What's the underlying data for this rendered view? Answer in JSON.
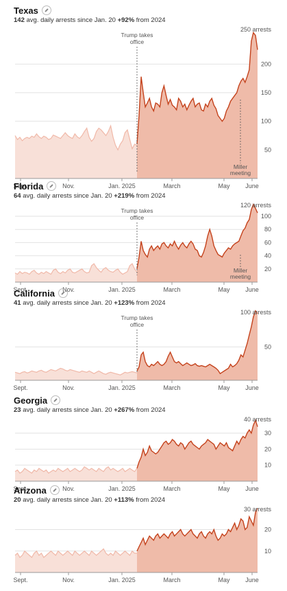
{
  "colors": {
    "pre_fill": "#f8e0d8",
    "pre_line": "#f0b8a8",
    "post_fill": "#efbba9",
    "post_line": "#c4421c",
    "grid": "#e2e2e2",
    "axis": "#999999"
  },
  "annotations": {
    "trump": [
      "Trump takes",
      "office"
    ],
    "miller": [
      "Miller",
      "meeting"
    ]
  },
  "chart_data": [
    {
      "type": "area",
      "title": "Texas",
      "avg_value": "142",
      "avg_label": " avg. daily arrests since Jan. 20",
      "pct_label": "+92%",
      "pct_suffix": " from 2024",
      "x_ticks": [
        "Sept.",
        "Nov.",
        "Jan. 2025",
        "March",
        "May",
        "June"
      ],
      "ylim": [
        0,
        270
      ],
      "y_ticks": [
        50,
        100,
        150,
        200
      ],
      "top_label": "250 arrests",
      "trump_annotation": true,
      "miller_annotation": true,
      "pre_values": [
        75,
        68,
        72,
        66,
        70,
        72,
        70,
        74,
        72,
        78,
        73,
        70,
        74,
        72,
        68,
        70,
        76,
        74,
        72,
        70,
        75,
        80,
        75,
        72,
        70,
        78,
        73,
        70,
        75,
        82,
        88,
        72,
        65,
        70,
        82,
        88,
        85,
        80,
        75,
        82,
        92,
        72,
        58,
        50,
        60,
        66,
        80,
        85,
        68,
        52,
        60,
        58
      ],
      "post_values": [
        60,
        110,
        178,
        150,
        125,
        132,
        140,
        125,
        118,
        132,
        130,
        125,
        150,
        162,
        145,
        130,
        138,
        128,
        125,
        120,
        140,
        135,
        125,
        130,
        120,
        128,
        135,
        140,
        125,
        130,
        132,
        120,
        118,
        130,
        125,
        135,
        140,
        128,
        122,
        110,
        105,
        100,
        105,
        118,
        125,
        135,
        140,
        145,
        150,
        162,
        170,
        175,
        168,
        178,
        190,
        240,
        255,
        250,
        225
      ]
    },
    {
      "type": "area",
      "title": "Florida",
      "avg_value": "64",
      "avg_label": " avg. daily arrests since Jan. 20",
      "pct_label": "+219%",
      "pct_suffix": " from 2024",
      "x_ticks": [
        "Sept.",
        "Nov.",
        "Jan. 2025",
        "March",
        "May",
        "June"
      ],
      "ylim": [
        0,
        125
      ],
      "y_ticks": [
        20,
        40,
        60,
        80,
        100
      ],
      "top_label": "120 arrests",
      "trump_annotation": true,
      "miller_annotation": true,
      "pre_values": [
        14,
        12,
        16,
        13,
        15,
        14,
        12,
        16,
        18,
        14,
        12,
        15,
        13,
        16,
        14,
        12,
        18,
        20,
        15,
        13,
        16,
        14,
        18,
        20,
        15,
        14,
        16,
        18,
        20,
        16,
        14,
        15,
        25,
        28,
        22,
        18,
        15,
        20,
        22,
        18,
        16,
        15,
        18,
        20,
        15,
        12,
        14,
        16,
        25,
        28,
        20,
        15
      ],
      "post_values": [
        20,
        38,
        62,
        48,
        42,
        38,
        50,
        55,
        48,
        52,
        55,
        50,
        58,
        60,
        55,
        52,
        58,
        55,
        62,
        55,
        50,
        56,
        60,
        55,
        52,
        58,
        62,
        58,
        50,
        48,
        40,
        38,
        45,
        55,
        70,
        80,
        70,
        55,
        48,
        42,
        40,
        38,
        44,
        48,
        52,
        50,
        55,
        58,
        60,
        62,
        70,
        78,
        82,
        90,
        95,
        110,
        118,
        112,
        105
      ]
    },
    {
      "type": "area",
      "title": "California",
      "avg_value": "41",
      "avg_label": " avg. daily arrests since Jan. 20",
      "pct_label": "+123%",
      "pct_suffix": " from 2024",
      "x_ticks": [
        "Sept.",
        "Nov.",
        "Jan. 2025",
        "March",
        "May",
        "June"
      ],
      "ylim": [
        0,
        110
      ],
      "y_ticks": [
        50
      ],
      "top_label": "100 arrests",
      "trump_annotation": true,
      "miller_annotation": false,
      "pre_values": [
        12,
        11,
        10,
        12,
        13,
        11,
        12,
        14,
        13,
        12,
        14,
        15,
        13,
        12,
        14,
        16,
        15,
        14,
        16,
        18,
        17,
        15,
        14,
        16,
        15,
        14,
        13,
        12,
        14,
        13,
        12,
        14,
        12,
        10,
        12,
        14,
        12,
        10,
        9,
        11,
        12,
        11,
        10,
        9,
        8,
        10,
        12,
        11,
        12,
        13,
        12,
        11
      ],
      "post_values": [
        14,
        20,
        38,
        42,
        28,
        22,
        20,
        24,
        22,
        25,
        28,
        24,
        22,
        24,
        28,
        36,
        42,
        35,
        28,
        26,
        28,
        25,
        22,
        24,
        26,
        24,
        22,
        23,
        25,
        22,
        21,
        22,
        21,
        20,
        22,
        24,
        22,
        20,
        18,
        15,
        10,
        12,
        14,
        16,
        18,
        24,
        20,
        22,
        25,
        30,
        38,
        35,
        45,
        55,
        68,
        80,
        95,
        104,
        100
      ]
    },
    {
      "type": "area",
      "title": "Georgia",
      "avg_value": "23",
      "avg_label": " avg. daily arrests since Jan. 20",
      "pct_label": "+267%",
      "pct_suffix": " from 2024",
      "x_ticks": [
        "Sept.",
        "Nov.",
        "Jan. 2025",
        "March",
        "May",
        "June"
      ],
      "ylim": [
        0,
        42
      ],
      "y_ticks": [
        10,
        20,
        30
      ],
      "top_label": "40 arrests",
      "trump_annotation": false,
      "miller_annotation": false,
      "pre_values": [
        6,
        7,
        5,
        6,
        8,
        7,
        6,
        5,
        7,
        6,
        8,
        7,
        6,
        7,
        5,
        6,
        7,
        6,
        8,
        7,
        6,
        7,
        8,
        6,
        7,
        8,
        7,
        6,
        7,
        9,
        8,
        7,
        8,
        7,
        6,
        8,
        7,
        6,
        8,
        9,
        7,
        8,
        7,
        6,
        7,
        8,
        6,
        7,
        8,
        7,
        6,
        8
      ],
      "post_values": [
        8,
        12,
        15,
        20,
        16,
        18,
        22,
        19,
        18,
        17,
        18,
        20,
        22,
        24,
        25,
        23,
        24,
        26,
        25,
        23,
        22,
        24,
        23,
        20,
        22,
        24,
        25,
        23,
        22,
        21,
        20,
        22,
        23,
        24,
        26,
        25,
        24,
        23,
        20,
        22,
        24,
        23,
        22,
        24,
        21,
        20,
        19,
        22,
        25,
        23,
        26,
        28,
        27,
        30,
        32,
        30,
        35,
        38,
        34
      ]
    },
    {
      "type": "area",
      "title": "Arizona",
      "avg_value": "20",
      "avg_label": " avg. daily arrests since Jan. 20",
      "pct_label": "+113%",
      "pct_suffix": " from 2024",
      "x_ticks": [
        "Sept.",
        "Nov.",
        "Jan. 2025",
        "March",
        "May",
        "June"
      ],
      "ylim": [
        0,
        32
      ],
      "y_ticks": [
        10,
        20
      ],
      "top_label": "30 arrests",
      "trump_annotation": false,
      "miller_annotation": false,
      "pre_values": [
        8,
        9,
        7,
        8,
        10,
        9,
        8,
        7,
        9,
        10,
        8,
        9,
        7,
        8,
        9,
        10,
        9,
        8,
        10,
        9,
        8,
        9,
        10,
        9,
        8,
        10,
        9,
        8,
        9,
        10,
        9,
        8,
        10,
        9,
        8,
        9,
        10,
        11,
        9,
        8,
        9,
        8,
        10,
        9,
        8,
        9,
        10,
        9,
        8,
        10,
        9,
        9
      ],
      "post_values": [
        10,
        12,
        14,
        16,
        13,
        15,
        17,
        16,
        15,
        17,
        18,
        16,
        17,
        18,
        17,
        16,
        18,
        19,
        17,
        18,
        19,
        20,
        18,
        17,
        18,
        19,
        20,
        18,
        17,
        16,
        18,
        19,
        17,
        16,
        18,
        19,
        18,
        20,
        17,
        15,
        16,
        18,
        17,
        18,
        20,
        19,
        21,
        23,
        20,
        22,
        25,
        24,
        20,
        21,
        26,
        24,
        22,
        28,
        30
      ]
    }
  ]
}
